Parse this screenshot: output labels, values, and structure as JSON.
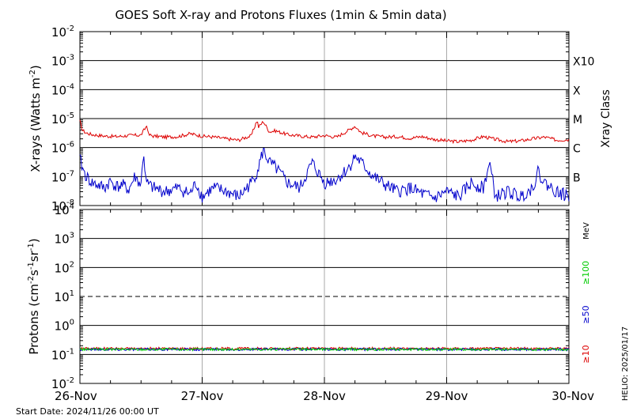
{
  "chart_data": [
    {
      "type": "line",
      "panel": "xray",
      "title": "GOES Soft X-ray and Protons Fluxes   (1min & 5min data)",
      "ylabel_main": "X-rays (Watts m",
      "ylabel_sup": "-2",
      "ylabel_end": ")",
      "yscale": "log",
      "ylim": [
        1e-08,
        0.01
      ],
      "y_ticks": [
        {
          "base": "10",
          "exp": "-2"
        },
        {
          "base": "10",
          "exp": "-3"
        },
        {
          "base": "10",
          "exp": "-4"
        },
        {
          "base": "10",
          "exp": "-5"
        },
        {
          "base": "10",
          "exp": "-6"
        },
        {
          "base": "10",
          "exp": "-7"
        },
        {
          "base": "10",
          "exp": "-8"
        }
      ],
      "right_axis_label": "Xray Class",
      "xray_classes": [
        "X10",
        "X",
        "M",
        "C",
        "B"
      ],
      "x_ticks": [
        "26-Nov",
        "27-Nov",
        "28-Nov",
        "29-Nov",
        "30-Nov"
      ],
      "series": [
        {
          "color": "#dd0000",
          "x_days": [
            0.0,
            0.02,
            0.05,
            0.1,
            0.2,
            0.3,
            0.4,
            0.5,
            0.55,
            0.56,
            0.6,
            0.7,
            0.8,
            0.9,
            1.0,
            1.1,
            1.2,
            1.3,
            1.35,
            1.4,
            1.45,
            1.46,
            1.5,
            1.55,
            1.6,
            1.7,
            1.8,
            1.9,
            2.0,
            2.1,
            2.2,
            2.25,
            2.3,
            2.4,
            2.5,
            2.6,
            2.7,
            2.8,
            2.9,
            3.0,
            3.1,
            3.2,
            3.3,
            3.4,
            3.5,
            3.6,
            3.7,
            3.8,
            3.9,
            4.0
          ],
          "values": [
            8e-06,
            4e-06,
            3.2e-06,
            2.8e-06,
            2.5e-06,
            2.4e-06,
            2.6e-06,
            2.7e-06,
            6e-06,
            2.8e-06,
            2.5e-06,
            2.3e-06,
            2.4e-06,
            3e-06,
            2.5e-06,
            2.3e-06,
            2e-06,
            1.8e-06,
            2.2e-06,
            2.5e-06,
            9e-06,
            5e-06,
            8e-06,
            3.5e-06,
            3.8e-06,
            2.8e-06,
            2.5e-06,
            2.3e-06,
            2.6e-06,
            2.3e-06,
            4e-06,
            5.5e-06,
            3.3e-06,
            2.5e-06,
            2.3e-06,
            2.4e-06,
            2.1e-06,
            2.4e-06,
            1.9e-06,
            1.7e-06,
            1.6e-06,
            1.8e-06,
            2.4e-06,
            1.9e-06,
            1.6e-06,
            1.7e-06,
            2e-06,
            2.3e-06,
            1.8e-06,
            1.9e-06
          ]
        },
        {
          "color": "#0000cc",
          "x_days": [
            0.0,
            0.03,
            0.06,
            0.1,
            0.15,
            0.2,
            0.25,
            0.3,
            0.35,
            0.4,
            0.45,
            0.5,
            0.52,
            0.54,
            0.6,
            0.7,
            0.8,
            0.9,
            0.95,
            1.0,
            1.05,
            1.1,
            1.2,
            1.3,
            1.4,
            1.45,
            1.5,
            1.55,
            1.6,
            1.7,
            1.8,
            1.9,
            2.0,
            2.1,
            2.2,
            2.25,
            2.3,
            2.4,
            2.5,
            2.6,
            2.7,
            2.8,
            2.9,
            3.0,
            3.1,
            3.2,
            3.3,
            3.35,
            3.4,
            3.5,
            3.6,
            3.7,
            3.75,
            3.8,
            3.9,
            4.0
          ],
          "values": [
            4e-07,
            1.5e-07,
            9e-08,
            6e-08,
            5e-08,
            4e-08,
            7e-08,
            4.5e-08,
            5e-08,
            3.5e-08,
            1e-07,
            5e-08,
            8e-07,
            6e-08,
            4e-08,
            3e-08,
            4e-08,
            2.5e-08,
            6e-08,
            2e-08,
            3e-08,
            4e-08,
            3e-08,
            2e-08,
            6e-08,
            1.5e-07,
            8e-07,
            3e-07,
            2e-07,
            6e-08,
            4e-08,
            3e-07,
            6e-08,
            8e-08,
            2e-07,
            5e-07,
            3e-07,
            1e-07,
            5e-08,
            3e-08,
            4e-08,
            2.5e-08,
            1.8e-08,
            3e-08,
            2e-08,
            6e-08,
            4e-08,
            3e-07,
            2e-08,
            3e-08,
            2e-08,
            4e-08,
            1.5e-07,
            6e-08,
            3e-08,
            2e-08
          ]
        }
      ]
    },
    {
      "type": "line",
      "panel": "protons",
      "ylabel_main": "Protons (cm",
      "ylabel_sup1": "-2",
      "ylabel_mid1": "s",
      "ylabel_sup2": "-1",
      "ylabel_mid2": "sr",
      "ylabel_sup3": "-1",
      "ylabel_end": ")",
      "yscale": "log",
      "ylim": [
        0.01,
        10000
      ],
      "y_ticks": [
        {
          "base": "10",
          "exp": "4"
        },
        {
          "base": "10",
          "exp": "3"
        },
        {
          "base": "10",
          "exp": "2"
        },
        {
          "base": "10",
          "exp": "1"
        },
        {
          "base": "10",
          "exp": "0"
        },
        {
          "base": "10",
          "exp": "-1"
        },
        {
          "base": "10",
          "exp": "-2"
        }
      ],
      "threshold_dashed": 10,
      "energy_unit": "MeV",
      "legend": [
        {
          "label": "≥100",
          "color": "#00cc00"
        },
        {
          "label": "≥50",
          "color": "#0000cc"
        },
        {
          "label": "≥10",
          "color": "#dd0000"
        }
      ],
      "x_ticks": [
        "26-Nov",
        "27-Nov",
        "28-Nov",
        "29-Nov",
        "30-Nov"
      ],
      "series": [
        {
          "color": "#dd0000",
          "level": 0.16
        },
        {
          "color": "#0000cc",
          "level": 0.15
        },
        {
          "color": "#00cc00",
          "level": 0.15
        }
      ]
    }
  ],
  "footer": {
    "start_date": "Start Date: 2024/11/26 00:00 UT",
    "helio": "HELIO: 2025/01/17"
  }
}
